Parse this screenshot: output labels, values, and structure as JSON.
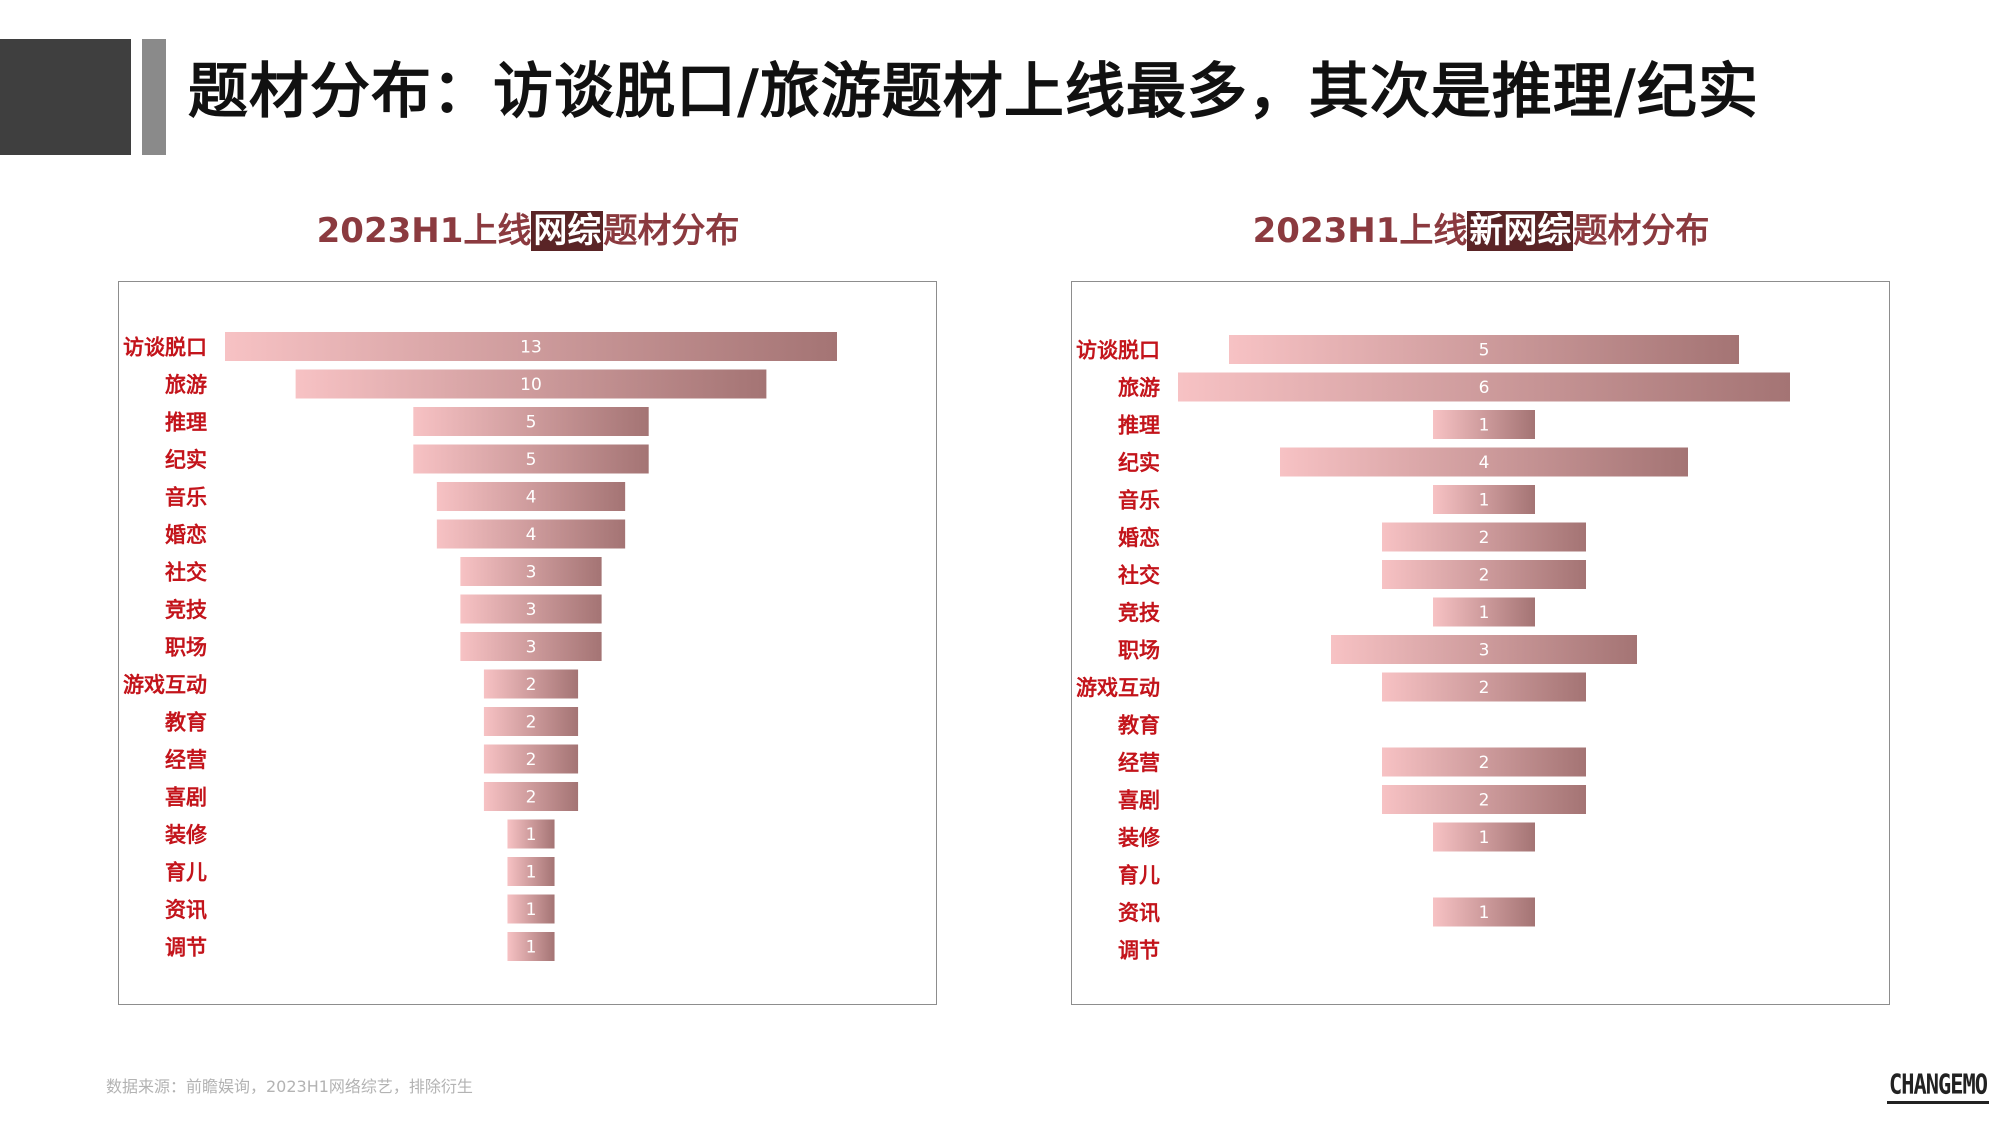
{
  "header": {
    "title": "题材分布：访谈脱口/旅游题材上线最多，其次是推理/纪实"
  },
  "colors": {
    "bar_start": "#f7c2c4",
    "bar_end": "#a47474",
    "category_label": "#c3141b",
    "chart_title": "#8b3a3f",
    "title_highlight_bg": "#5a2426"
  },
  "chart_data": [
    {
      "type": "bar",
      "orientation": "horizontal-centered",
      "title_parts": {
        "before": "2023H1上线",
        "highlight": "网综",
        "after": "题材分布"
      },
      "categories": [
        "访谈脱口",
        "旅游",
        "推理",
        "纪实",
        "音乐",
        "婚恋",
        "社交",
        "竞技",
        "职场",
        "游戏互动",
        "教育",
        "经营",
        "喜剧",
        "装修",
        "育儿",
        "资讯",
        "调节"
      ],
      "values": [
        13,
        10,
        5,
        5,
        4,
        4,
        3,
        3,
        3,
        2,
        2,
        2,
        2,
        1,
        1,
        1,
        1
      ],
      "value_labels": [
        "13",
        "10",
        "5",
        "5",
        "4",
        "4",
        "3",
        "3",
        "3",
        "2",
        "2",
        "2",
        "2",
        "1",
        "1",
        "1",
        "1"
      ],
      "xlim": [
        0,
        13
      ]
    },
    {
      "type": "bar",
      "orientation": "horizontal-centered",
      "title_parts": {
        "before": "2023H1上线",
        "highlight": "新网综",
        "after": "题材分布"
      },
      "categories": [
        "访谈脱口",
        "旅游",
        "推理",
        "纪实",
        "音乐",
        "婚恋",
        "社交",
        "竞技",
        "职场",
        "游戏互动",
        "教育",
        "经营",
        "喜剧",
        "装修",
        "育儿",
        "资讯",
        "调节"
      ],
      "values": [
        5,
        6,
        1,
        4,
        1,
        2,
        2,
        1,
        3,
        2,
        0,
        2,
        2,
        1,
        0,
        1,
        0
      ],
      "value_labels": [
        "5",
        "6",
        "1",
        "4",
        "1",
        "2",
        "2",
        "1",
        "3",
        "2",
        "",
        "2",
        "2",
        "1",
        "",
        "1",
        ""
      ],
      "xlim": [
        0,
        6
      ]
    }
  ],
  "footer": {
    "source": "数据来源：前瞻娱询，2023H1网络综艺，排除衍生",
    "logo": "CHANGEMO"
  }
}
